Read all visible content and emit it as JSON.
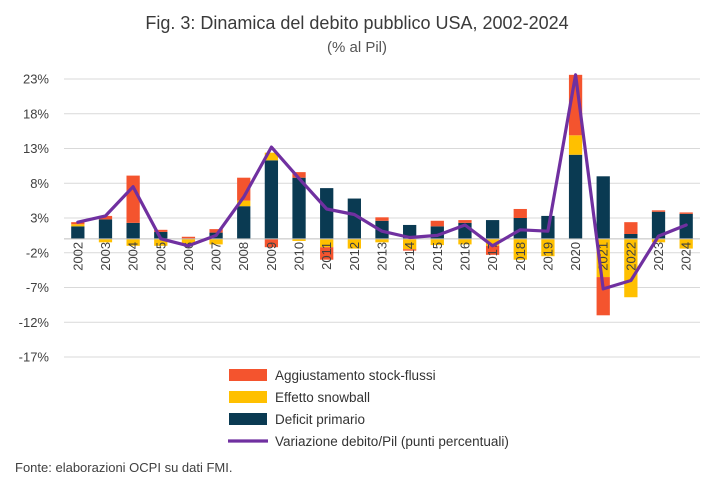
{
  "title": "Fig. 3: Dinamica del debito pubblico USA, 2002-2024",
  "subtitle": "(% al Pil)",
  "source": "Fonte: elaborazioni OCPI su dati FMI.",
  "colors": {
    "stock_flow": "#f4542e",
    "snowball": "#ffc000",
    "primary_deficit": "#0a3a52",
    "debt_change": "#7030a0",
    "grid": "#d9d9d9"
  },
  "chart_data": {
    "type": "bar",
    "stacked": true,
    "title": "Fig. 3: Dinamica del debito pubblico USA, 2002-2024",
    "subtitle": "(% al Pil)",
    "xlabel": "",
    "ylabel": "",
    "ylim": [
      -17,
      25
    ],
    "yticks": [
      23,
      18,
      13,
      8,
      3,
      -2,
      -7,
      -12,
      -17
    ],
    "ytick_labels": [
      "23%",
      "18%",
      "13%",
      "8%",
      "3%",
      "-2%",
      "-7%",
      "-12%",
      "-17%"
    ],
    "grid": true,
    "legend_position": "bottom",
    "categories": [
      "2002",
      "2003",
      "2004",
      "2005",
      "2006",
      "2007",
      "2008",
      "2009",
      "2010",
      "2011",
      "2012",
      "2013",
      "2014",
      "2015",
      "2016",
      "2017",
      "2018",
      "2019",
      "2020",
      "2021",
      "2022",
      "2023",
      "2024"
    ],
    "series": [
      {
        "name": "Aggiustamento stock-flussi",
        "kind": "bar",
        "color_key": "stock_flow",
        "values": [
          0.3,
          0.5,
          6.8,
          0.3,
          0.3,
          0.5,
          3.3,
          -1.2,
          0.8,
          -1.8,
          0.0,
          0.5,
          -0.2,
          0.8,
          0.4,
          -1.3,
          1.3,
          0.0,
          8.7,
          -5.5,
          1.7,
          0.2,
          0.2
        ]
      },
      {
        "name": "Effetto snowball",
        "kind": "bar",
        "color_key": "snowball",
        "values": [
          0.3,
          -0.5,
          -1.0,
          -1.0,
          -0.8,
          -0.8,
          0.8,
          1.1,
          -0.3,
          -1.2,
          -1.4,
          -0.5,
          -1.5,
          -0.9,
          -0.8,
          -1.0,
          -3.0,
          -2.5,
          2.8,
          -5.5,
          -8.4,
          -0.5,
          -1.4
        ]
      },
      {
        "name": "Deficit primario",
        "kind": "bar",
        "color_key": "primary_deficit",
        "values": [
          1.8,
          2.8,
          2.3,
          1.0,
          0.0,
          0.9,
          4.7,
          11.3,
          8.8,
          7.3,
          5.8,
          2.6,
          2.0,
          1.8,
          2.3,
          2.7,
          3.0,
          3.3,
          12.1,
          9.0,
          0.7,
          3.9,
          3.6
        ]
      },
      {
        "name": "Variazione debito/Pil (punti percentuali)",
        "kind": "line",
        "color_key": "debt_change",
        "values": [
          2.4,
          3.3,
          7.5,
          0.0,
          -1.0,
          0.5,
          6.0,
          13.2,
          8.7,
          4.3,
          3.5,
          1.1,
          0.2,
          0.5,
          2.0,
          -1.0,
          1.3,
          1.1,
          23.6,
          -7.2,
          -6.0,
          0.4,
          2.0
        ]
      }
    ]
  }
}
